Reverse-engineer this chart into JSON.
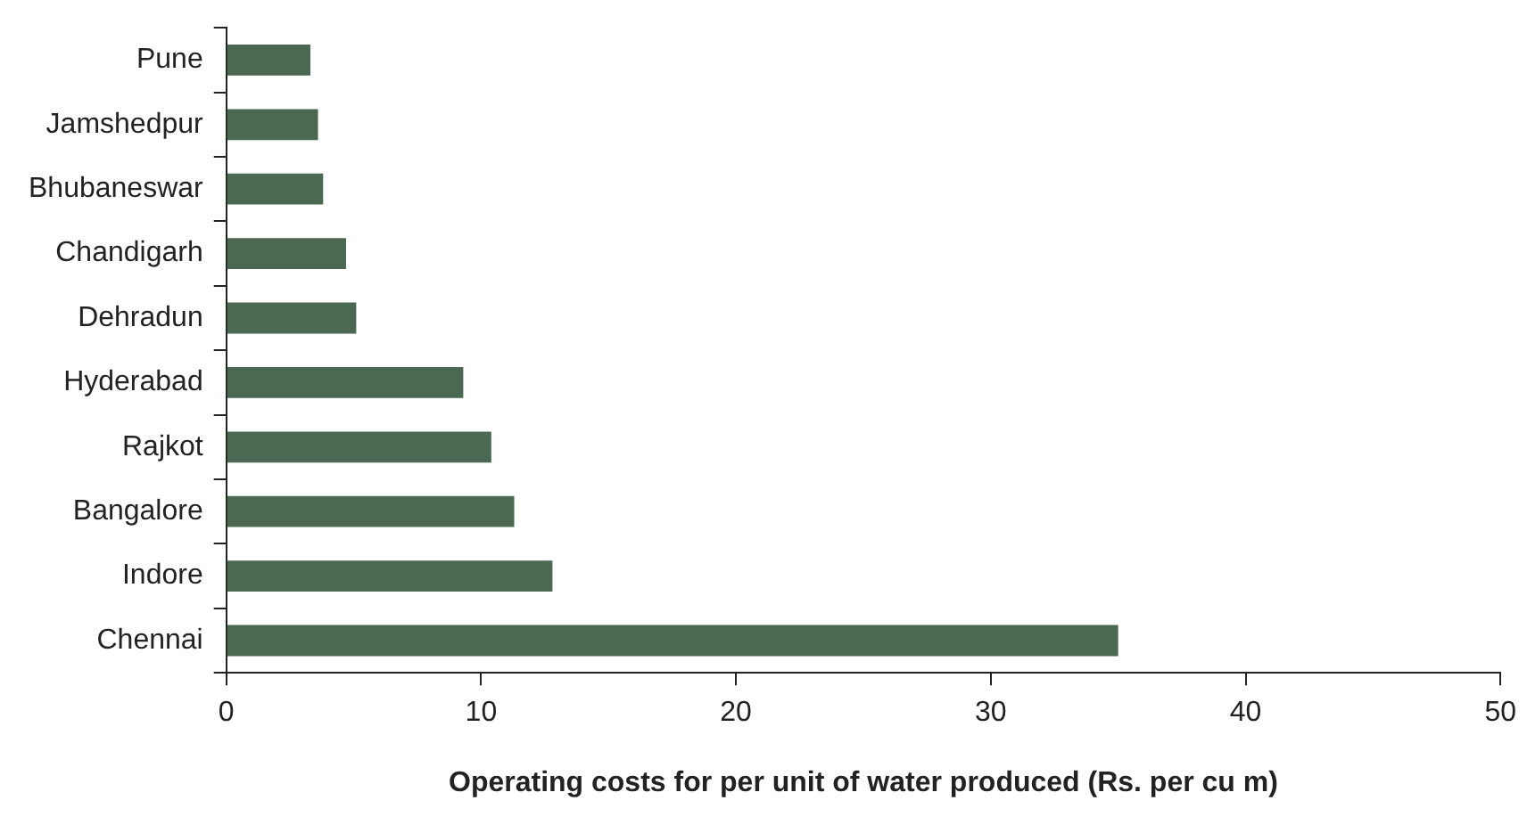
{
  "chart_data": {
    "type": "bar",
    "orientation": "horizontal",
    "xlabel": "Operating costs for per unit of water produced (Rs. per cu m)",
    "categories": [
      "Pune",
      "Jamshedpur",
      "Bhubaneswar",
      "Chandigarh",
      "Dehradun",
      "Hyderabad",
      "Rajkot",
      "Bangalore",
      "Indore",
      "Chennai"
    ],
    "values": [
      3.3,
      3.6,
      3.8,
      4.7,
      5.1,
      9.3,
      10.4,
      11.3,
      12.8,
      35.0
    ],
    "color": "#4a6852",
    "xlim": [
      0,
      50
    ],
    "xticks": [
      0,
      10,
      20,
      30,
      40,
      50
    ],
    "grid": false,
    "legend": false
  }
}
